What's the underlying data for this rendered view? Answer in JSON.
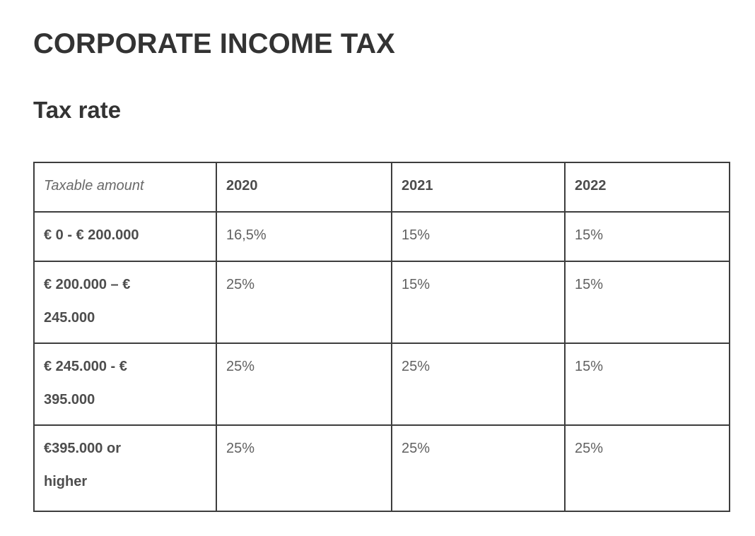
{
  "page": {
    "title": "CORPORATE INCOME TAX",
    "subtitle": "Tax rate"
  },
  "tax_table": {
    "header": {
      "taxable_amount": "Taxable amount",
      "year_2020": "2020",
      "year_2021": "2021",
      "year_2022": "2022"
    },
    "rows": [
      {
        "range": "€ 0 - € 200.000",
        "y2020": "16,5%",
        "y2021": "15%",
        "y2022": "15%"
      },
      {
        "range": "€ 200.000 – € 245.000",
        "y2020": "25%",
        "y2021": "15%",
        "y2022": "15%"
      },
      {
        "range": "€ 245.000 - € 395.000",
        "y2020": "25%",
        "y2021": "25%",
        "y2022": "15%"
      },
      {
        "range": "€395.000 or higher",
        "y2020": "25%",
        "y2021": "25%",
        "y2022": "25%"
      }
    ]
  },
  "colors": {
    "background": "#ffffff",
    "heading_text": "#333333",
    "table_border": "#3d3d3d",
    "table_label_text": "#4d4d4d",
    "table_value_text": "#616161",
    "table_header_italic_text": "#6a6a6a"
  }
}
